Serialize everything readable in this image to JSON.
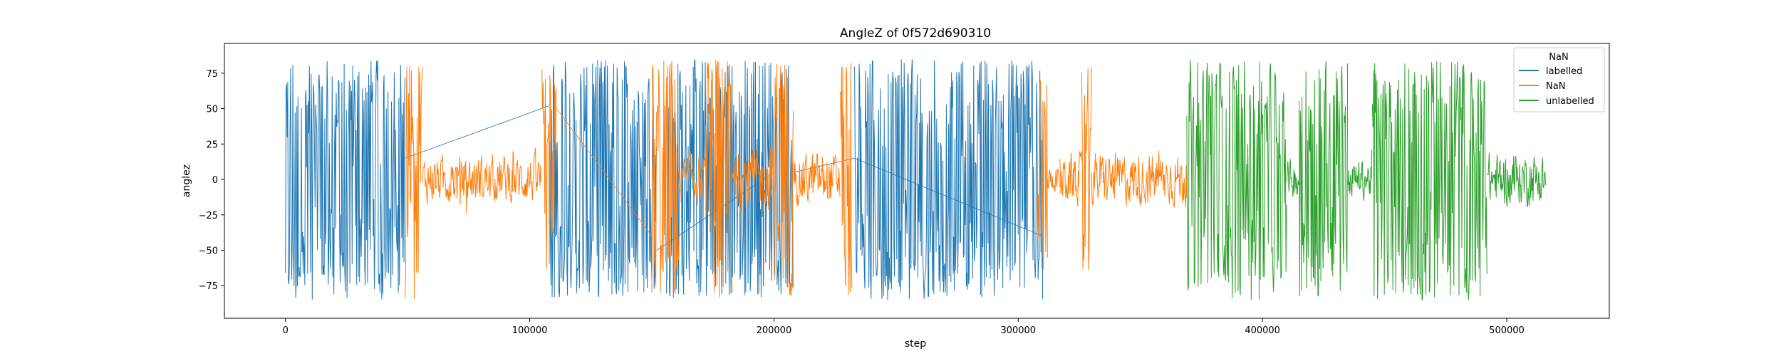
{
  "chart_data": {
    "type": "line",
    "title": "AngleZ of 0f572d690310",
    "xlabel": "step",
    "ylabel": "anglez",
    "xlim": [
      -25000,
      542000
    ],
    "ylim": [
      -98,
      96
    ],
    "xticks": [
      0,
      100000,
      200000,
      300000,
      400000,
      500000
    ],
    "xtick_labels": [
      "0",
      "100000",
      "200000",
      "300000",
      "400000",
      "500000"
    ],
    "yticks": [
      -75,
      -50,
      -25,
      0,
      25,
      50,
      75
    ],
    "ytick_labels": [
      "−75",
      "−50",
      "−25",
      "0",
      "25",
      "50",
      "75"
    ],
    "grid": false,
    "legend": {
      "title": "NaN",
      "placement": "top-right",
      "entries": [
        "labelled",
        "NaN",
        "unlabelled"
      ]
    },
    "series": [
      {
        "name": "labelled",
        "color": "#1f77b4",
        "segments": [
          {
            "start": 0,
            "end": 49000,
            "amplitude": 85,
            "style": "active"
          },
          {
            "start": 108000,
            "end": 152000,
            "amplitude": 85,
            "style": "active"
          },
          {
            "start": 156000,
            "end": 208000,
            "amplitude": 85,
            "style": "active"
          },
          {
            "start": 233000,
            "end": 310000,
            "amplitude": 85,
            "style": "active"
          }
        ],
        "connectors": [
          [
            [
              49000,
              15
            ],
            [
              108000,
              52
            ]
          ],
          [
            [
              152000,
              -50
            ],
            [
              200000,
              5
            ]
          ],
          [
            [
              208000,
              5
            ],
            [
              233000,
              15
            ]
          ],
          [
            [
              233000,
              15
            ],
            [
              310000,
              -40
            ]
          ]
        ]
      },
      {
        "name": "NaN",
        "color": "#ff7f0e",
        "segments": [
          {
            "start": 49000,
            "end": 56000,
            "amplitude": 85,
            "style": "active"
          },
          {
            "start": 56000,
            "end": 105000,
            "amplitude": 18,
            "style": "calm"
          },
          {
            "start": 105000,
            "end": 111000,
            "amplitude": 85,
            "style": "active"
          },
          {
            "start": 150000,
            "end": 161000,
            "amplitude": 85,
            "style": "active"
          },
          {
            "start": 161000,
            "end": 172000,
            "amplitude": 20,
            "style": "calm"
          },
          {
            "start": 172000,
            "end": 183000,
            "amplitude": 85,
            "style": "active"
          },
          {
            "start": 183000,
            "end": 200000,
            "amplitude": 25,
            "style": "calm"
          },
          {
            "start": 200000,
            "end": 208000,
            "amplitude": 85,
            "style": "active"
          },
          {
            "start": 208000,
            "end": 227000,
            "amplitude": 20,
            "style": "calm"
          },
          {
            "start": 227000,
            "end": 232000,
            "amplitude": 85,
            "style": "active"
          },
          {
            "start": 308000,
            "end": 312000,
            "amplitude": 70,
            "style": "active"
          },
          {
            "start": 312000,
            "end": 317000,
            "amplitude": 10,
            "style": "calm"
          },
          {
            "start": 317000,
            "end": 326000,
            "amplitude": 20,
            "style": "calm"
          },
          {
            "start": 326000,
            "end": 330000,
            "amplitude": 85,
            "style": "active"
          },
          {
            "start": 330000,
            "end": 369000,
            "amplitude": 20,
            "style": "calm"
          }
        ],
        "connectors": [
          [
            [
              111000,
              50
            ],
            [
              150000,
              -40
            ]
          ]
        ]
      },
      {
        "name": "unlabelled",
        "color": "#2ca02c",
        "segments": [
          {
            "start": 369000,
            "end": 410000,
            "amplitude": 85,
            "style": "active"
          },
          {
            "start": 410000,
            "end": 415000,
            "amplitude": 15,
            "style": "calm"
          },
          {
            "start": 415000,
            "end": 435000,
            "amplitude": 85,
            "style": "active"
          },
          {
            "start": 435000,
            "end": 445000,
            "amplitude": 15,
            "style": "calm"
          },
          {
            "start": 445000,
            "end": 492000,
            "amplitude": 85,
            "style": "active"
          },
          {
            "start": 492000,
            "end": 516000,
            "amplitude": 20,
            "style": "calm"
          }
        ],
        "connectors": []
      }
    ]
  }
}
